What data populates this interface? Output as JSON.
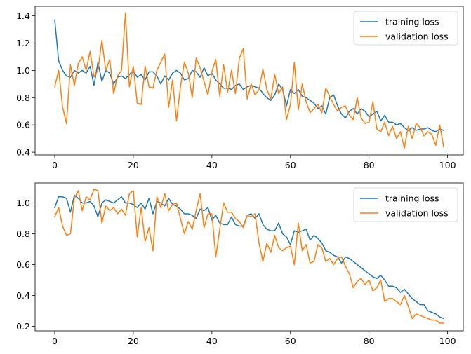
{
  "chart_data": [
    {
      "type": "line",
      "title": "",
      "xlabel": "",
      "ylabel": "",
      "xlim": [
        -5,
        104
      ],
      "ylim": [
        0.38,
        1.47
      ],
      "xticks": [
        0,
        20,
        40,
        60,
        80,
        100
      ],
      "yticks": [
        0.4,
        0.6,
        0.8,
        1.0,
        1.2,
        1.4
      ],
      "ytick_labels": [
        "0.4",
        "0.6",
        "0.8",
        "1.0",
        "1.2",
        "1.4"
      ],
      "grid": false,
      "legend": "top-right",
      "series": [
        {
          "name": "training loss",
          "color": "#1f77b4",
          "values": [
            1.37,
            1.07,
            1.0,
            0.96,
            0.95,
            1.0,
            0.98,
            1.0,
            0.98,
            1.03,
            0.89,
            1.06,
            0.92,
            1.0,
            0.98,
            0.9,
            0.95,
            0.96,
            0.94,
            0.97,
            1.0,
            0.95,
            0.97,
            0.93,
            0.99,
            0.99,
            0.96,
            0.9,
            0.96,
            0.93,
            0.98,
            1.0,
            0.98,
            0.93,
            0.94,
            1.0,
            0.99,
            0.95,
            1.02,
            0.96,
            0.98,
            0.93,
            0.9,
            0.87,
            0.87,
            0.86,
            0.89,
            0.9,
            0.86,
            0.88,
            0.89,
            0.88,
            0.87,
            0.83,
            0.8,
            0.78,
            0.82,
            0.9,
            0.86,
            0.74,
            0.86,
            0.83,
            0.86,
            0.81,
            0.8,
            0.78,
            0.76,
            0.72,
            0.74,
            0.68,
            0.8,
            0.82,
            0.74,
            0.68,
            0.65,
            0.7,
            0.72,
            0.68,
            0.72,
            0.7,
            0.66,
            0.68,
            0.7,
            0.63,
            0.67,
            0.62,
            0.62,
            0.6,
            0.61,
            0.58,
            0.56,
            0.58,
            0.56,
            0.57,
            0.57,
            0.58,
            0.56,
            0.55,
            0.57,
            0.56
          ]
        },
        {
          "name": "validation loss",
          "color": "#ff7f0e",
          "values": [
            0.88,
            1.0,
            0.73,
            0.61,
            1.04,
            0.89,
            1.05,
            1.1,
            1.0,
            1.14,
            0.95,
            1.0,
            1.22,
            1.0,
            1.08,
            0.83,
            0.96,
            1.0,
            1.42,
            0.88,
            1.03,
            0.76,
            0.75,
            1.03,
            0.88,
            0.87,
            1.0,
            1.06,
            1.12,
            0.73,
            0.93,
            0.63,
            0.88,
            1.06,
            0.98,
            0.8,
            1.09,
            1.02,
            0.92,
            0.82,
            0.99,
            1.08,
            0.81,
            1.04,
            0.84,
            1.0,
            0.83,
            1.09,
            1.16,
            0.79,
            0.9,
            0.82,
            0.86,
            1.01,
            0.86,
            0.79,
            0.97,
            0.83,
            0.88,
            0.64,
            0.75,
            1.06,
            0.71,
            0.9,
            0.77,
            0.69,
            0.72,
            0.75,
            0.69,
            0.87,
            0.81,
            0.75,
            0.7,
            0.73,
            0.74,
            0.67,
            0.64,
            0.8,
            0.65,
            0.61,
            0.62,
            0.77,
            0.57,
            0.55,
            0.62,
            0.52,
            0.59,
            0.5,
            0.55,
            0.43,
            0.59,
            0.5,
            0.61,
            0.58,
            0.52,
            0.55,
            0.53,
            0.45,
            0.6,
            0.44
          ]
        }
      ]
    },
    {
      "type": "line",
      "title": "",
      "xlabel": "",
      "ylabel": "",
      "xlim": [
        -5,
        104
      ],
      "ylim": [
        0.17,
        1.13
      ],
      "xticks": [
        0,
        20,
        40,
        60,
        80,
        100
      ],
      "yticks": [
        0.2,
        0.4,
        0.6,
        0.8,
        1.0
      ],
      "ytick_labels": [
        "0.2",
        "0.4",
        "0.6",
        "0.8",
        "1.0"
      ],
      "grid": false,
      "legend": "top-right",
      "series": [
        {
          "name": "training loss",
          "color": "#1f77b4",
          "values": [
            0.97,
            1.04,
            1.04,
            1.03,
            0.94,
            1.05,
            1.03,
            1.0,
            1.0,
            1.01,
            0.98,
            0.91,
            1.0,
            1.02,
            1.01,
            1.0,
            1.02,
            1.04,
            1.0,
            1.0,
            0.99,
            0.97,
            1.0,
            0.96,
            1.03,
            0.93,
            1.01,
            1.0,
            0.98,
            1.03,
            0.99,
            0.98,
            0.96,
            0.93,
            0.93,
            0.92,
            0.9,
            0.96,
            0.95,
            0.97,
            0.89,
            0.92,
            0.87,
            0.86,
            0.86,
            0.91,
            0.86,
            0.85,
            0.85,
            0.92,
            0.93,
            0.9,
            0.93,
            0.86,
            0.83,
            0.82,
            0.82,
            0.87,
            0.8,
            0.78,
            0.73,
            0.82,
            0.81,
            0.82,
            0.83,
            0.76,
            0.79,
            0.77,
            0.74,
            0.69,
            0.68,
            0.66,
            0.65,
            0.61,
            0.65,
            0.64,
            0.62,
            0.6,
            0.58,
            0.56,
            0.54,
            0.52,
            0.51,
            0.53,
            0.5,
            0.46,
            0.46,
            0.45,
            0.42,
            0.44,
            0.41,
            0.38,
            0.36,
            0.34,
            0.34,
            0.3,
            0.29,
            0.28,
            0.26,
            0.25
          ]
        },
        {
          "name": "validation loss",
          "color": "#ff7f0e",
          "values": [
            0.91,
            0.97,
            0.85,
            0.79,
            0.8,
            1.03,
            1.08,
            0.95,
            1.04,
            1.02,
            1.09,
            1.08,
            0.87,
            0.98,
            0.95,
            0.97,
            0.93,
            0.96,
            0.92,
            1.06,
            1.08,
            0.78,
            0.97,
            0.75,
            0.84,
            0.69,
            1.04,
            0.97,
            1.06,
            0.95,
            0.99,
            1.0,
            0.9,
            0.8,
            0.88,
            0.83,
            0.95,
            1.06,
            0.84,
            0.93,
            0.93,
            0.65,
            0.83,
            1.0,
            0.94,
            0.94,
            0.9,
            0.88,
            0.84,
            0.92,
            0.91,
            0.93,
            0.74,
            0.62,
            0.74,
            0.68,
            0.79,
            0.71,
            0.69,
            0.71,
            0.72,
            0.6,
            0.87,
            0.69,
            0.73,
            0.61,
            0.62,
            0.73,
            0.71,
            0.62,
            0.64,
            0.6,
            0.64,
            0.65,
            0.59,
            0.54,
            0.45,
            0.49,
            0.51,
            0.47,
            0.5,
            0.43,
            0.45,
            0.5,
            0.36,
            0.38,
            0.38,
            0.36,
            0.34,
            0.4,
            0.33,
            0.25,
            0.28,
            0.27,
            0.26,
            0.25,
            0.24,
            0.24,
            0.22,
            0.22
          ]
        }
      ]
    }
  ]
}
